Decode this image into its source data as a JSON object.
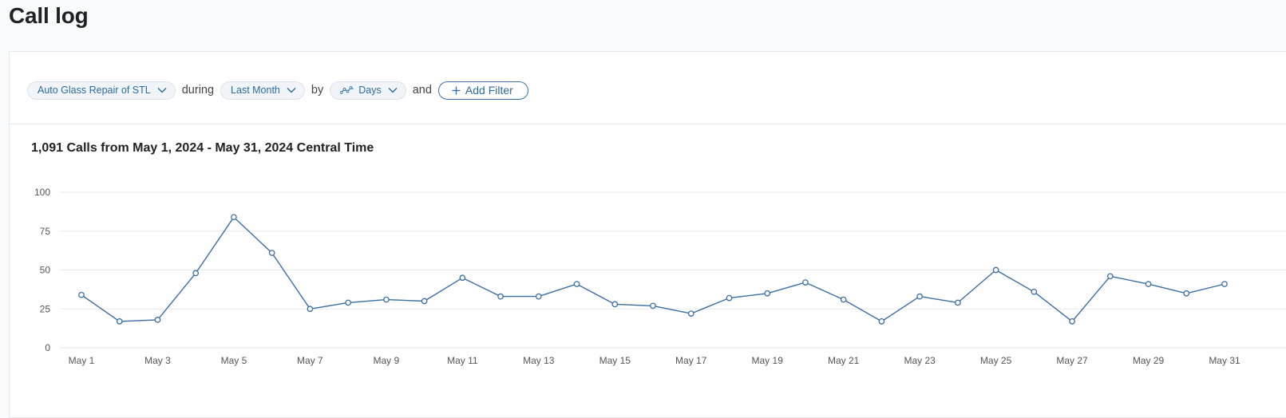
{
  "page": {
    "title": "Call log"
  },
  "filters": {
    "account": {
      "label": "Auto Glass Repair of STL",
      "icon": "chevron-down-icon"
    },
    "joiner_during": "during",
    "period": {
      "label": "Last Month",
      "icon": "chevron-down-icon"
    },
    "joiner_by": "by",
    "granularity": {
      "label": "Days",
      "icon": "line-chart-icon"
    },
    "joiner_and": "and",
    "add_filter": {
      "label": "Add Filter",
      "icon": "plus-icon"
    }
  },
  "summary": "1,091 Calls from May 1, 2024 - May 31, 2024 Central Time",
  "colors": {
    "accent": "#2c6aa0",
    "line": "#3b6ea3",
    "grid": "#e8eaed"
  },
  "chart_data": {
    "type": "line",
    "title": "1,091 Calls from May 1, 2024 - May 31, 2024 Central Time",
    "xlabel": "",
    "ylabel": "",
    "ylim": [
      0,
      100
    ],
    "yticks": [
      0,
      25,
      50,
      75,
      100
    ],
    "grid": true,
    "x": [
      "May 1",
      "May 2",
      "May 3",
      "May 4",
      "May 5",
      "May 6",
      "May 7",
      "May 8",
      "May 9",
      "May 10",
      "May 11",
      "May 12",
      "May 13",
      "May 14",
      "May 15",
      "May 16",
      "May 17",
      "May 18",
      "May 19",
      "May 20",
      "May 21",
      "May 22",
      "May 23",
      "May 24",
      "May 25",
      "May 26",
      "May 27",
      "May 28",
      "May 29",
      "May 30",
      "May 31"
    ],
    "xtick_labels": [
      "May 1",
      "May 3",
      "May 5",
      "May 7",
      "May 9",
      "May 11",
      "May 13",
      "May 15",
      "May 17",
      "May 19",
      "May 21",
      "May 23",
      "May 25",
      "May 27",
      "May 29",
      "May 31"
    ],
    "series": [
      {
        "values": [
          34,
          17,
          18,
          48,
          84,
          61,
          25,
          29,
          31,
          30,
          45,
          33,
          33,
          41,
          28,
          27,
          22,
          32,
          35,
          42,
          31,
          17,
          33,
          29,
          50,
          36,
          17,
          46,
          41,
          35,
          41
        ]
      }
    ]
  }
}
